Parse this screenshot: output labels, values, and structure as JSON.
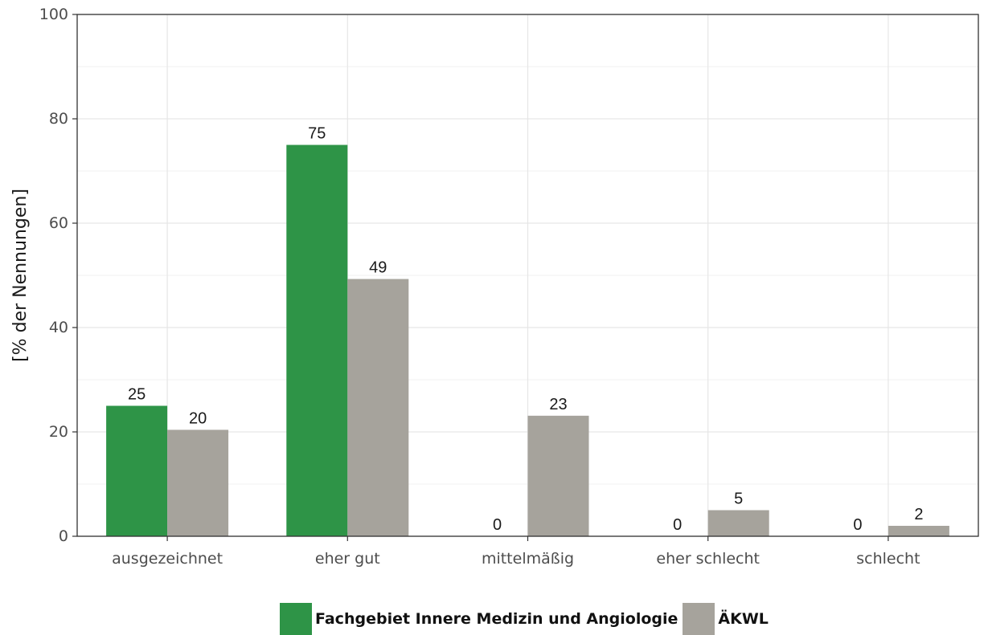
{
  "chart_data": {
    "type": "bar",
    "categories": [
      "ausgezeichnet",
      "eher gut",
      "mittelmäßig",
      "eher schlecht",
      "schlecht"
    ],
    "series": [
      {
        "name": "Fachgebiet Innere Medizin und Angiologie",
        "color": "#2e9447",
        "values": [
          25,
          75,
          0,
          0,
          0
        ],
        "labels": [
          "25",
          "75",
          "0",
          "0",
          "0"
        ]
      },
      {
        "name": "ÄKWL",
        "color": "#a6a39c",
        "values": [
          20.4,
          49.3,
          23.1,
          5,
          2
        ],
        "labels": [
          "20",
          "49",
          "23",
          "5",
          "2"
        ]
      }
    ],
    "ylabel": "[% der Nennungen]",
    "ylim": [
      0,
      100
    ],
    "yticks": [
      0,
      20,
      40,
      60,
      80,
      100
    ],
    "grid": true,
    "legend_position": "bottom"
  }
}
